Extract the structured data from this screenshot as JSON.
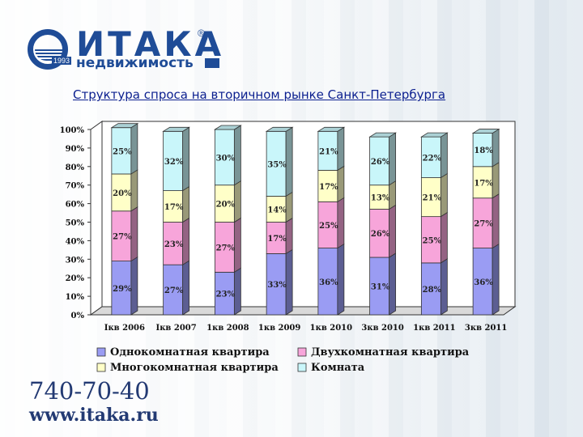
{
  "brand": {
    "name": "ИТАКА",
    "sub": "недвижимость",
    "year": "1993",
    "reg": "®"
  },
  "chart_data": {
    "type": "bar",
    "stacked": true,
    "percent": true,
    "title": "Структура спроса на вторичном рынке Санкт-Петербурга",
    "categories": [
      "Iкв 2006",
      "Iкв 2007",
      "1кв 2008",
      "1кв 2009",
      "1кв 2010",
      "3кв 2010",
      "1кв 2011",
      "3кв 2011"
    ],
    "yticks": [
      "0%",
      "10%",
      "20%",
      "30%",
      "40%",
      "50%",
      "60%",
      "70%",
      "80%",
      "90%",
      "100%"
    ],
    "ylim": [
      0,
      100
    ],
    "series": [
      {
        "name": "Однокомнатная квартира",
        "color": "#9a9cf3",
        "values": [
          29,
          27,
          23,
          33,
          36,
          31,
          28,
          36
        ]
      },
      {
        "name": "Двухкомнатная квартира",
        "color": "#f7a5da",
        "values": [
          27,
          23,
          27,
          17,
          25,
          26,
          25,
          27
        ]
      },
      {
        "name": "Многокомнатная квартира",
        "color": "#ffffc8",
        "values": [
          20,
          17,
          20,
          14,
          17,
          13,
          21,
          17
        ]
      },
      {
        "name": "Комната",
        "color": "#c9f6fa",
        "values": [
          25,
          32,
          30,
          35,
          21,
          26,
          22,
          18
        ]
      }
    ],
    "legend": "bottom"
  },
  "contacts": {
    "phone": "740-70-40",
    "site": "www.itaka.ru"
  }
}
